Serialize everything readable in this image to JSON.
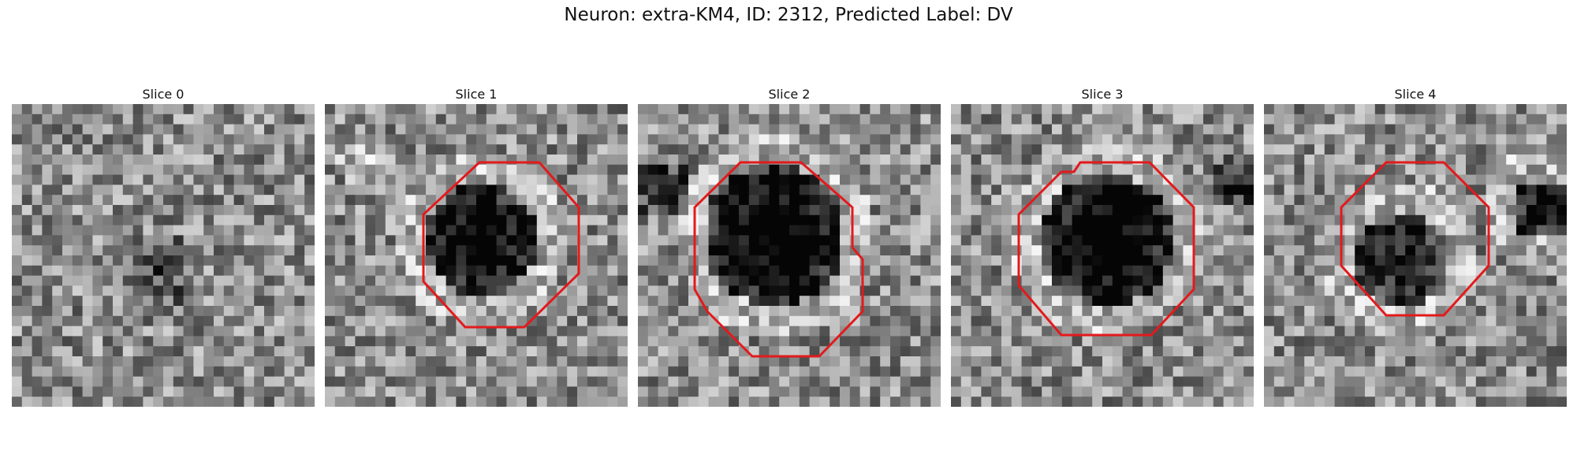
{
  "figure": {
    "title": "Neuron: extra-KM4, ID: 2312, Predicted Label: DV",
    "outline_color": "#e31a1c"
  },
  "slices": [
    {
      "label": "Slice 0",
      "has_outline": false
    },
    {
      "label": "Slice 1",
      "has_outline": true
    },
    {
      "label": "Slice 2",
      "has_outline": true
    },
    {
      "label": "Slice 3",
      "has_outline": true
    },
    {
      "label": "Slice 4",
      "has_outline": true
    }
  ]
}
